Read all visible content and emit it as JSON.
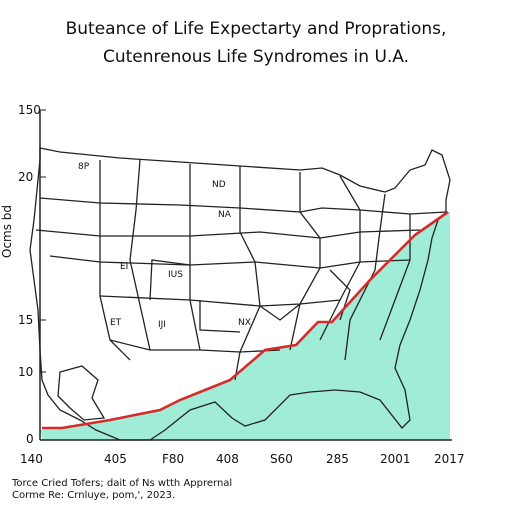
{
  "title_line1": "Buteance of Life Expectarty and Proprations,",
  "title_line2": "Cutenrenous Life Syndromes in U.A.",
  "y_ticks": [
    "150",
    "20",
    "15",
    "10",
    "0"
  ],
  "y_axis_title": "Ocms bd",
  "x_ticks": [
    "140",
    "405",
    "F80",
    "408",
    "S60",
    "285",
    "2001",
    "2017"
  ],
  "state_labels": [
    "8P",
    "ND",
    "NA",
    "EI",
    "IUS",
    "ET",
    "IJI",
    "NX"
  ],
  "source_line1": "Torce Cried Tofers; dait of Ns wtth Apprernal",
  "source_line2": "Corme Re: Crnluye, pom,', 2023.",
  "colors": {
    "fill": "#8fe9d0",
    "line": "#d62b2b",
    "map_stroke": "#222222"
  }
}
